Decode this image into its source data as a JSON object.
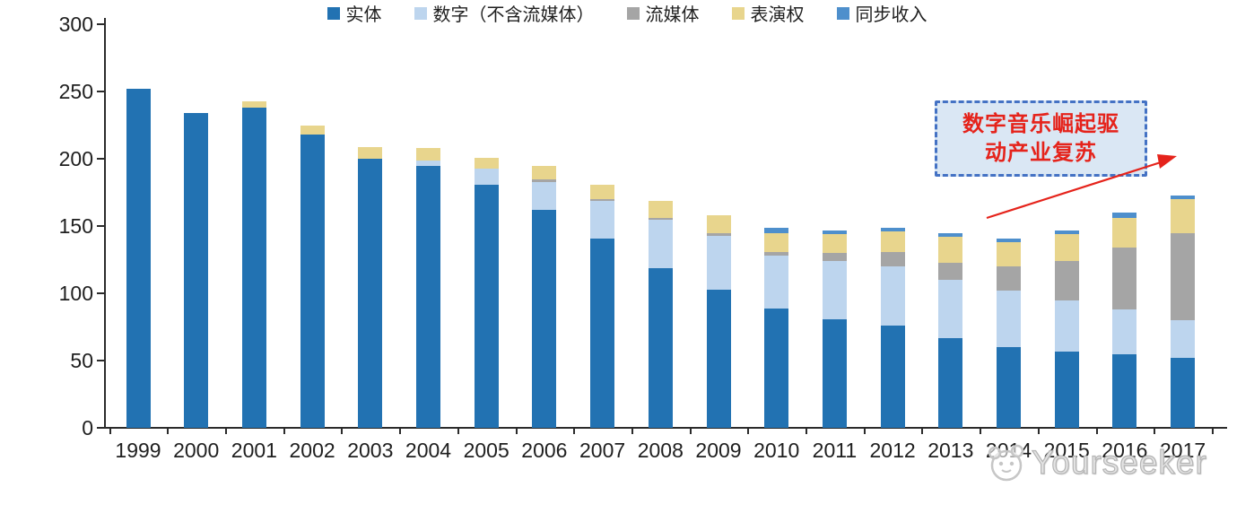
{
  "chart_data": {
    "type": "bar",
    "stacked": true,
    "title": "",
    "xlabel": "",
    "ylabel": "",
    "grid": false,
    "legend_position": "bottom",
    "ylim": [
      0,
      300
    ],
    "yticks": [
      0,
      50,
      100,
      150,
      200,
      250,
      300
    ],
    "categories": [
      "1999",
      "2000",
      "2001",
      "2002",
      "2003",
      "2004",
      "2005",
      "2006",
      "2007",
      "2008",
      "2009",
      "2010",
      "2011",
      "2012",
      "2013",
      "2014",
      "2015",
      "2016",
      "2017"
    ],
    "series": [
      {
        "name": "实体",
        "color": "#2272b2",
        "values": [
          252,
          234,
          238,
          218,
          200,
          195,
          181,
          162,
          141,
          119,
          103,
          89,
          81,
          76,
          67,
          60,
          57,
          55,
          52
        ]
      },
      {
        "name": "数字（不含流媒体）",
        "color": "#bdd5ee",
        "values": [
          0,
          0,
          0,
          0,
          0,
          4,
          12,
          21,
          28,
          36,
          40,
          39,
          43,
          44,
          43,
          42,
          38,
          33,
          28
        ]
      },
      {
        "name": "流媒体",
        "color": "#a5a5a5",
        "values": [
          0,
          0,
          0,
          0,
          0,
          0,
          0,
          2,
          1,
          1,
          2,
          3,
          6,
          11,
          13,
          18,
          29,
          46,
          65
        ]
      },
      {
        "name": "表演权",
        "color": "#e8d58d",
        "values": [
          0,
          0,
          5,
          7,
          9,
          9,
          8,
          10,
          11,
          13,
          13,
          14,
          14,
          15,
          19,
          18,
          20,
          22,
          25
        ]
      },
      {
        "name": "同步收入",
        "color": "#4e8fcc",
        "values": [
          0,
          0,
          0,
          0,
          0,
          0,
          0,
          0,
          0,
          0,
          0,
          4,
          3,
          3,
          3,
          3,
          3,
          4,
          3
        ]
      }
    ]
  },
  "annotation": {
    "line1": "数字音乐崛起驱",
    "line2": "动产业复苏",
    "box_fill": "#dae7f4",
    "box_border": "#4472c4",
    "text_color": "#e5231b",
    "arrow_color": "#e5231b"
  },
  "watermark": {
    "text": "Yourseeker"
  },
  "colors": {
    "axis": "#2b2b2b",
    "tick_label": "#1f1f1f",
    "background": "#ffffff"
  }
}
